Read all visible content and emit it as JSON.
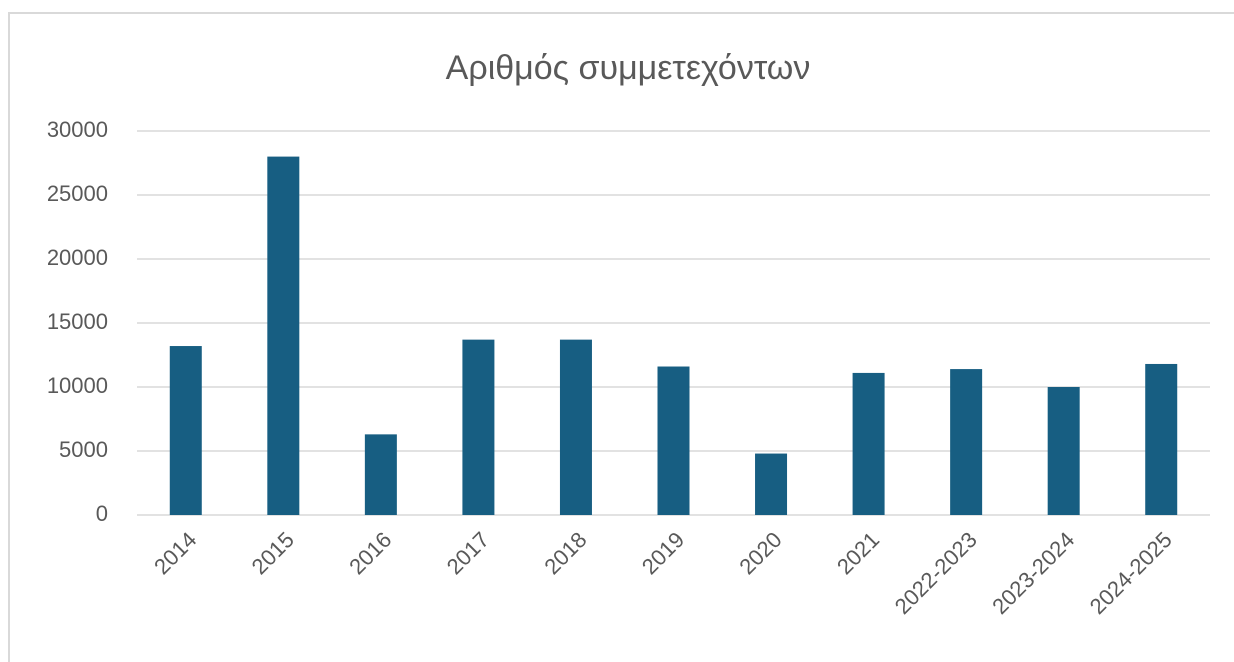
{
  "chart_data": {
    "type": "bar",
    "title": "Αριθμός συμμετεχόντων",
    "categories": [
      "2014",
      "2015",
      "2016",
      "2017",
      "2018",
      "2019",
      "2020",
      "2021",
      "2022-2023",
      "2023-2024",
      "2024-2025"
    ],
    "values": [
      13200,
      28000,
      6300,
      13700,
      13700,
      11600,
      4800,
      11100,
      11400,
      10000,
      11800
    ],
    "color": "#175e82",
    "ylim": [
      0,
      30000
    ],
    "yticks": [
      0,
      5000,
      10000,
      15000,
      20000,
      25000,
      30000
    ],
    "grid": true
  }
}
